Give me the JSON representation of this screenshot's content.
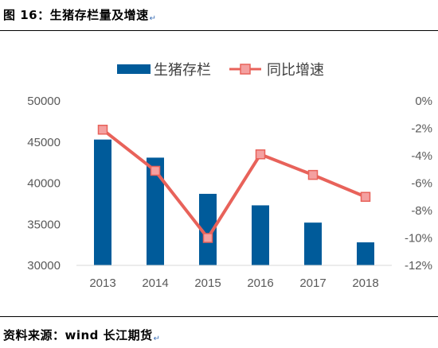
{
  "figure_title": "图 16：生猪存栏量及增速",
  "source": "资料来源：wind   长江期货",
  "paragraph_mark": "↵",
  "chart_data": {
    "type": "bar+line",
    "categories": [
      "2013",
      "2014",
      "2015",
      "2016",
      "2017",
      "2018"
    ],
    "series": [
      {
        "name": "生猪存栏",
        "type": "bar",
        "axis": "left",
        "color": "#005b9a",
        "values": [
          45300,
          43100,
          38700,
          37300,
          35200,
          32800
        ]
      },
      {
        "name": "同比增速",
        "type": "line",
        "axis": "right",
        "color": "#e8625a",
        "marker_fill": "#f4a0a0",
        "values": [
          -2.1,
          -5.1,
          -10.0,
          -3.9,
          -5.4,
          -7.0
        ]
      }
    ],
    "y_left": {
      "min": 30000,
      "max": 50000,
      "step": 5000,
      "ticks": [
        "30000",
        "35000",
        "40000",
        "45000",
        "50000"
      ]
    },
    "y_right": {
      "min": -12,
      "max": 0,
      "step": 2,
      "ticks": [
        "-12%",
        "-10%",
        "-8%",
        "-6%",
        "-4%",
        "-2%",
        "0%"
      ]
    },
    "legend": {
      "position": "top"
    },
    "grid": false
  }
}
